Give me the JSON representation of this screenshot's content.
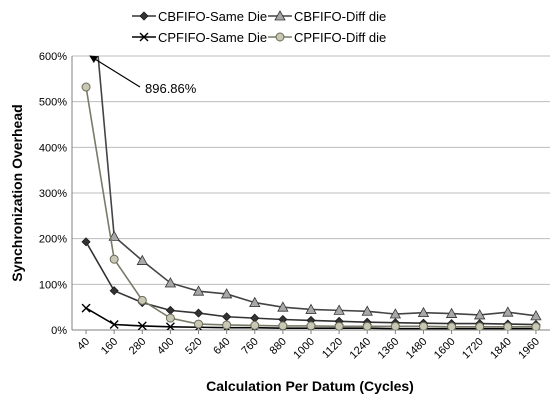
{
  "chart_data": {
    "type": "line",
    "title": "",
    "xlabel": "Calculation Per Datum (Cycles)",
    "ylabel": "Synchronization Overhead",
    "ylim": [
      0,
      600
    ],
    "yticks": [
      0,
      100,
      200,
      300,
      400,
      500,
      600
    ],
    "ytick_labels": [
      "0%",
      "100%",
      "200%",
      "300%",
      "400%",
      "500%",
      "600%"
    ],
    "grid": "horizontal",
    "legend_position": "top",
    "categories": [
      "40",
      "160",
      "280",
      "400",
      "520",
      "640",
      "760",
      "880",
      "1000",
      "1120",
      "1240",
      "1360",
      "1480",
      "1600",
      "1720",
      "1840",
      "1960"
    ],
    "series": [
      {
        "name": "CBFIFO-Same Die",
        "marker": "diamond",
        "color": "#333333",
        "values": [
          193,
          86,
          60,
          43,
          37,
          29,
          26,
          23,
          21,
          19,
          17,
          16,
          15,
          14,
          14,
          13,
          12
        ]
      },
      {
        "name": "CBFIFO-Diff die",
        "marker": "triangle",
        "color": "#444444",
        "values": [
          896.86,
          205,
          152,
          103,
          85,
          79,
          60,
          50,
          45,
          43,
          41,
          35,
          38,
          36,
          33,
          39,
          31
        ]
      },
      {
        "name": "CPFIFO-Same Die",
        "marker": "x",
        "color": "#000000",
        "values": [
          48,
          12,
          9,
          7,
          6,
          5,
          5,
          4,
          4,
          4,
          4,
          3,
          3,
          3,
          3,
          3,
          3
        ]
      },
      {
        "name": "CPFIFO-Diff die",
        "marker": "circle",
        "color": "#7a7a68",
        "values": [
          532,
          155,
          65,
          26,
          13,
          11,
          10,
          9,
          9,
          8,
          8,
          8,
          8,
          7,
          7,
          7,
          7
        ]
      }
    ],
    "annotations": [
      {
        "text": "896.86%",
        "series": "CBFIFO-Diff die",
        "category": "40"
      }
    ]
  }
}
